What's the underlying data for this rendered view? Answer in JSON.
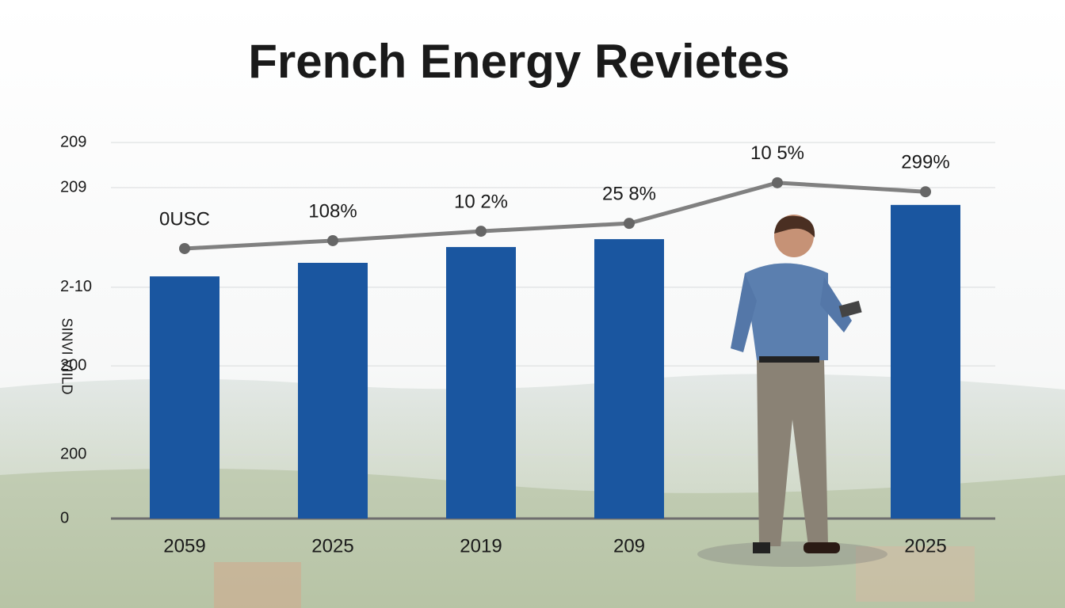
{
  "chart_data": {
    "type": "bar_line",
    "title": "French Energy Revietes",
    "y_label": "SINVI VIILD",
    "categories": [
      "2059",
      "2025",
      "2019",
      "209",
      null,
      "2025"
    ],
    "series": [
      {
        "type": "bar",
        "color": "#1a56a0",
        "values": [
          64.4,
          68,
          72.2,
          74.3,
          null,
          83.4
        ]
      },
      {
        "type": "line",
        "color": "#808080",
        "values": [
          71.8,
          73.9,
          76.4,
          78.5,
          89.3,
          86.9
        ],
        "value_labels": [
          "0USC",
          "108%",
          "10 2%",
          "25 8%",
          "10 5%",
          "299%"
        ]
      }
    ],
    "ylim": [
      0,
      100
    ],
    "yticks": [
      0,
      {
        "value": 17,
        "label": "200"
      },
      {
        "value": 40.6,
        "label": "200"
      },
      {
        "value": 61.5,
        "label": "2-10"
      },
      {
        "value": 88,
        "label": "209"
      },
      {
        "value": 100,
        "label": "209"
      }
    ],
    "grid": true
  }
}
